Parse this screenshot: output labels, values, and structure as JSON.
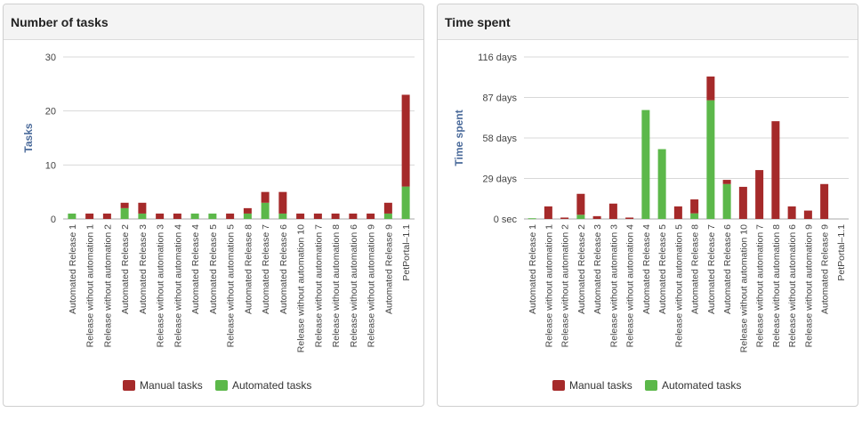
{
  "colors": {
    "manual": "#a52a2a",
    "automated": "#5cb84a",
    "axis_title": "#4a6a9a",
    "grid": "#d8d8d8",
    "label": "#444444"
  },
  "chart_data": [
    {
      "type": "bar",
      "stacked": true,
      "title": "Number of tasks",
      "ylabel": "Tasks",
      "xlabel": "",
      "ylim": [
        0,
        30
      ],
      "y_ticks": [
        0,
        10,
        20,
        30
      ],
      "y_tick_labels": [
        "0",
        "10",
        "20",
        "30"
      ],
      "grid": true,
      "legend_position": "bottom",
      "categories": [
        "Automated Release 1",
        "Release without automation 1",
        "Release without automation 2",
        "Automated Release 2",
        "Automated Release 3",
        "Release without automation 3",
        "Release without automation 4",
        "Automated Release 4",
        "Automated Release 5",
        "Release without automation 5",
        "Automated Release 8",
        "Automated Release 7",
        "Automated Release 6",
        "Release without automation 10",
        "Release without automation 7",
        "Release without automation 8",
        "Release without automation 6",
        "Release without automation 9",
        "Automated Release 9",
        "PetPortal–1.1"
      ],
      "series": [
        {
          "name": "Automated tasks",
          "color": "#5cb84a",
          "values": [
            1,
            0,
            0,
            2,
            1,
            0,
            0,
            1,
            1,
            0,
            1,
            3,
            1,
            0,
            0,
            0,
            0,
            0,
            1,
            6
          ]
        },
        {
          "name": "Manual tasks",
          "color": "#a52a2a",
          "values": [
            0,
            1,
            1,
            1,
            2,
            1,
            1,
            0,
            0,
            1,
            1,
            2,
            4,
            1,
            1,
            1,
            1,
            1,
            2,
            17
          ]
        }
      ]
    },
    {
      "type": "bar",
      "stacked": true,
      "title": "Time spent",
      "ylabel": "Time spent",
      "xlabel": "",
      "ylim": [
        0,
        116
      ],
      "y_unit": "days",
      "y_ticks": [
        0,
        29,
        58,
        87,
        116
      ],
      "y_tick_labels": [
        "0 sec",
        "29 days",
        "58 days",
        "87 days",
        "116 days"
      ],
      "grid": true,
      "legend_position": "bottom",
      "categories": [
        "Automated Release 1",
        "Release without automation 1",
        "Release without automation 2",
        "Automated Release 2",
        "Automated Release 3",
        "Release without automation 3",
        "Release without automation 4",
        "Automated Release 4",
        "Automated Release 5",
        "Release without automation 5",
        "Automated Release 8",
        "Automated Release 7",
        "Automated Release 6",
        "Release without automation 10",
        "Release without automation 7",
        "Release without automation 8",
        "Release without automation 6",
        "Release without automation 9",
        "Automated Release 9",
        "PetPortal–1.1"
      ],
      "series": [
        {
          "name": "Automated tasks",
          "color": "#5cb84a",
          "values": [
            0.5,
            0,
            0,
            3,
            0,
            0,
            0,
            78,
            50,
            0,
            4,
            85,
            25,
            0,
            0,
            0,
            0,
            0,
            0,
            0
          ]
        },
        {
          "name": "Manual tasks",
          "color": "#a52a2a",
          "values": [
            0,
            9,
            1,
            15,
            2,
            11,
            1,
            0,
            0,
            9,
            10,
            17,
            3,
            23,
            35,
            70,
            9,
            6,
            25,
            0
          ]
        }
      ]
    }
  ],
  "legend": {
    "manual_label": "Manual tasks",
    "automated_label": "Automated tasks"
  }
}
